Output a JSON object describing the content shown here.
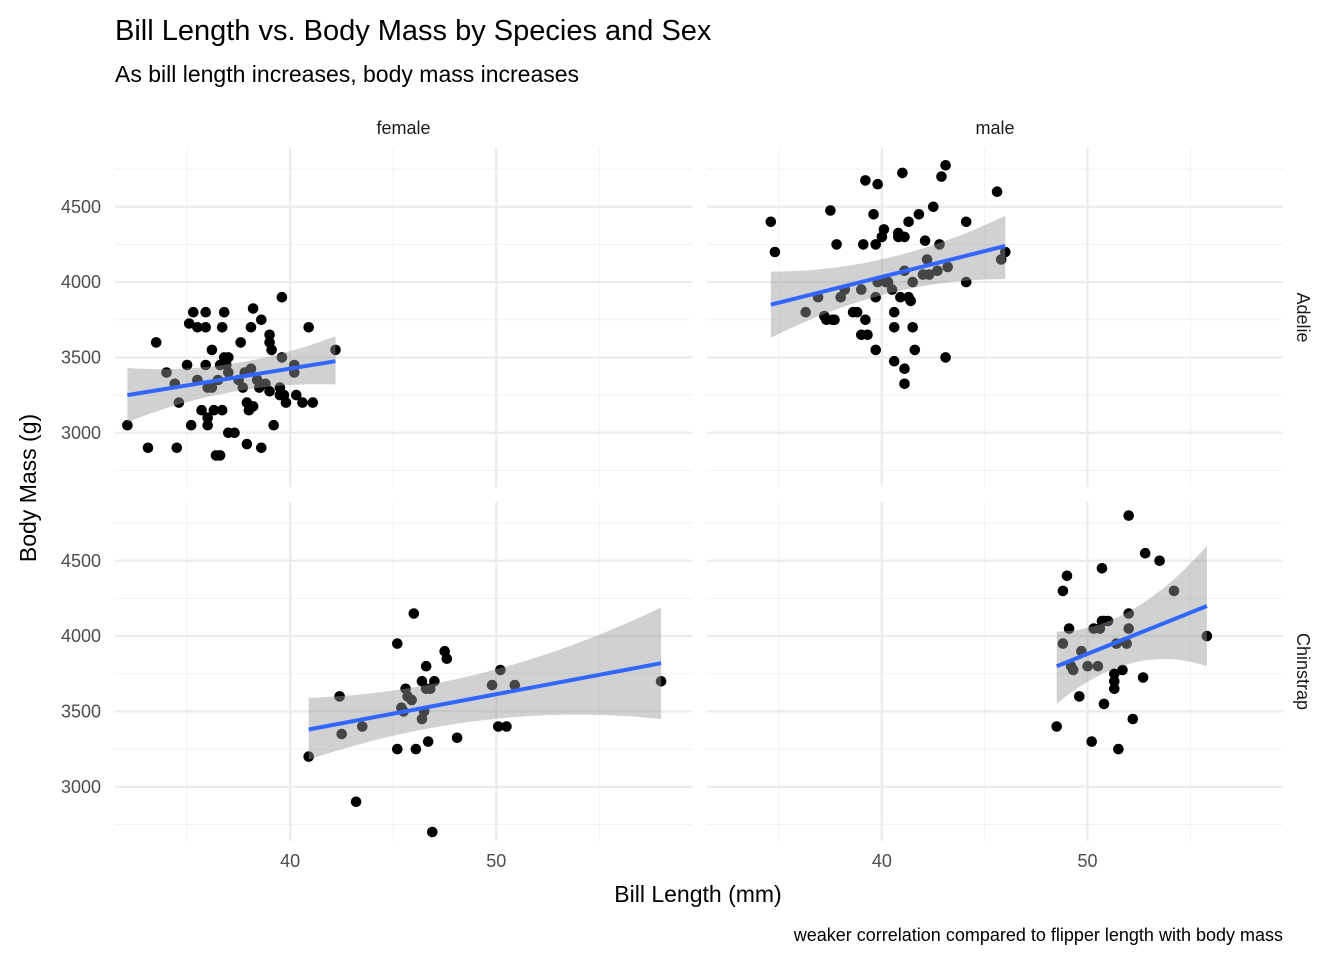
{
  "chart_data": {
    "type": "scatter",
    "title": "Bill Length vs. Body Mass by Species and Sex",
    "subtitle": "As bill length increases, body mass increases",
    "xlabel": "Bill Length (mm)",
    "ylabel": "Body Mass (g)",
    "caption": "weaker correlation compared to flipper length with body mass",
    "facet_cols": [
      "female",
      "male"
    ],
    "facet_rows": [
      "Adelie",
      "Chinstrap"
    ],
    "xlim": [
      31.5,
      59.5
    ],
    "xticks": [
      40,
      50
    ],
    "rows": [
      {
        "label": "Adelie",
        "ylim": [
          2640,
          4890
        ],
        "yticks": [
          3000,
          3500,
          4000,
          4500
        ]
      },
      {
        "label": "Chinstrap",
        "ylim": [
          2640,
          4890
        ],
        "yticks": [
          3000,
          3500,
          4000,
          4500
        ]
      }
    ],
    "grid": true,
    "panels": [
      {
        "col": "female",
        "row": "Adelie",
        "fit": {
          "x": [
            32.1,
            42.2
          ],
          "y": [
            3250,
            3475
          ],
          "se_low": [
            3070,
            3320
          ],
          "se_high": [
            3430,
            3640
          ]
        },
        "points": [
          [
            32.1,
            3050
          ],
          [
            33.1,
            2900
          ],
          [
            33.5,
            3600
          ],
          [
            34.0,
            3400
          ],
          [
            34.4,
            3325
          ],
          [
            34.5,
            2900
          ],
          [
            34.6,
            3200
          ],
          [
            35.0,
            3450
          ],
          [
            35.1,
            3725
          ],
          [
            35.2,
            3050
          ],
          [
            35.3,
            3800
          ],
          [
            35.5,
            3700
          ],
          [
            35.5,
            3350
          ],
          [
            35.7,
            3150
          ],
          [
            35.9,
            3800
          ],
          [
            35.9,
            3700
          ],
          [
            35.9,
            3450
          ],
          [
            36.0,
            3300
          ],
          [
            36.0,
            3100
          ],
          [
            36.0,
            3050
          ],
          [
            36.2,
            3300
          ],
          [
            36.2,
            3550
          ],
          [
            36.3,
            3150
          ],
          [
            36.4,
            2850
          ],
          [
            36.5,
            3350
          ],
          [
            36.6,
            2850
          ],
          [
            36.6,
            3450
          ],
          [
            36.7,
            3700
          ],
          [
            36.7,
            3150
          ],
          [
            36.8,
            3800
          ],
          [
            36.8,
            3500
          ],
          [
            36.9,
            3450
          ],
          [
            37.0,
            3500
          ],
          [
            37.0,
            3400
          ],
          [
            37.0,
            3000
          ],
          [
            37.3,
            3000
          ],
          [
            37.5,
            3350
          ],
          [
            37.6,
            3600
          ],
          [
            37.7,
            3300
          ],
          [
            37.8,
            3400
          ],
          [
            37.9,
            3200
          ],
          [
            37.9,
            2925
          ],
          [
            38.0,
            3150
          ],
          [
            38.1,
            3700
          ],
          [
            38.1,
            3425
          ],
          [
            38.2,
            3825
          ],
          [
            38.2,
            3175
          ],
          [
            38.4,
            3350
          ],
          [
            38.5,
            3300
          ],
          [
            38.6,
            3750
          ],
          [
            38.6,
            2900
          ],
          [
            38.8,
            3325
          ],
          [
            39.0,
            3650
          ],
          [
            39.0,
            3600
          ],
          [
            39.0,
            3275
          ],
          [
            39.1,
            3550
          ],
          [
            39.2,
            3050
          ],
          [
            39.5,
            3300
          ],
          [
            39.5,
            3250
          ],
          [
            39.6,
            3500
          ],
          [
            39.6,
            3900
          ],
          [
            39.7,
            3250
          ],
          [
            39.8,
            3200
          ],
          [
            40.2,
            3400
          ],
          [
            40.2,
            3450
          ],
          [
            40.3,
            3250
          ],
          [
            40.6,
            3200
          ],
          [
            40.9,
            3700
          ],
          [
            41.1,
            3200
          ],
          [
            42.2,
            3550
          ]
        ]
      },
      {
        "col": "male",
        "row": "Adelie",
        "fit": {
          "x": [
            34.6,
            46.0
          ],
          "y": [
            3850,
            4240
          ],
          "se_low": [
            3630,
            4020
          ],
          "se_high": [
            4070,
            4440
          ]
        },
        "points": [
          [
            34.6,
            4400
          ],
          [
            34.8,
            4200
          ],
          [
            36.3,
            3800
          ],
          [
            36.9,
            3900
          ],
          [
            37.2,
            3775
          ],
          [
            37.3,
            3750
          ],
          [
            37.5,
            4475
          ],
          [
            37.6,
            3750
          ],
          [
            37.7,
            3750
          ],
          [
            37.8,
            4250
          ],
          [
            38.0,
            3900
          ],
          [
            38.2,
            3950
          ],
          [
            38.6,
            3800
          ],
          [
            38.8,
            3800
          ],
          [
            39.0,
            3950
          ],
          [
            39.0,
            3650
          ],
          [
            39.1,
            4250
          ],
          [
            39.2,
            4675
          ],
          [
            39.2,
            3750
          ],
          [
            39.3,
            3650
          ],
          [
            39.6,
            4450
          ],
          [
            39.7,
            4250
          ],
          [
            39.7,
            3900
          ],
          [
            39.7,
            3550
          ],
          [
            39.8,
            4650
          ],
          [
            39.8,
            4000
          ],
          [
            40.0,
            4300
          ],
          [
            40.1,
            4350
          ],
          [
            40.2,
            4000
          ],
          [
            40.3,
            4000
          ],
          [
            40.5,
            3950
          ],
          [
            40.6,
            3700
          ],
          [
            40.6,
            3475
          ],
          [
            40.6,
            3800
          ],
          [
            40.8,
            4300
          ],
          [
            40.8,
            4325
          ],
          [
            40.9,
            3900
          ],
          [
            41.0,
            4725
          ],
          [
            41.1,
            4300
          ],
          [
            41.1,
            4075
          ],
          [
            41.1,
            3325
          ],
          [
            41.1,
            3425
          ],
          [
            41.3,
            4400
          ],
          [
            41.3,
            3900
          ],
          [
            41.4,
            3875
          ],
          [
            41.5,
            4000
          ],
          [
            41.5,
            3700
          ],
          [
            41.6,
            3550
          ],
          [
            41.8,
            4450
          ],
          [
            42.0,
            4050
          ],
          [
            42.1,
            4275
          ],
          [
            42.2,
            4150
          ],
          [
            42.3,
            4050
          ],
          [
            42.5,
            4500
          ],
          [
            42.7,
            4075
          ],
          [
            42.8,
            4250
          ],
          [
            42.9,
            4700
          ],
          [
            43.1,
            4775
          ],
          [
            43.1,
            3500
          ],
          [
            43.2,
            4100
          ],
          [
            44.1,
            4400
          ],
          [
            44.1,
            4000
          ],
          [
            45.6,
            4600
          ],
          [
            45.8,
            4150
          ],
          [
            46.0,
            4200
          ]
        ]
      },
      {
        "col": "female",
        "row": "Chinstrap",
        "fit": {
          "x": [
            40.9,
            58.0
          ],
          "y": [
            3380,
            3820
          ],
          "se_low": [
            3180,
            3450
          ],
          "se_high": [
            3590,
            4190
          ]
        },
        "points": [
          [
            40.9,
            3200
          ],
          [
            42.4,
            3600
          ],
          [
            42.5,
            3350
          ],
          [
            43.2,
            2900
          ],
          [
            43.5,
            3400
          ],
          [
            45.2,
            3950
          ],
          [
            45.2,
            3250
          ],
          [
            45.4,
            3525
          ],
          [
            45.5,
            3500
          ],
          [
            45.6,
            3650
          ],
          [
            45.7,
            3600
          ],
          [
            45.9,
            3575
          ],
          [
            46.0,
            4150
          ],
          [
            46.1,
            3250
          ],
          [
            46.4,
            3700
          ],
          [
            46.4,
            3450
          ],
          [
            46.5,
            3500
          ],
          [
            46.6,
            3650
          ],
          [
            46.6,
            3800
          ],
          [
            46.7,
            3300
          ],
          [
            46.8,
            3650
          ],
          [
            46.9,
            2700
          ],
          [
            47.0,
            3700
          ],
          [
            47.5,
            3900
          ],
          [
            47.6,
            3850
          ],
          [
            48.1,
            3325
          ],
          [
            49.8,
            3675
          ],
          [
            50.1,
            3400
          ],
          [
            50.2,
            3775
          ],
          [
            50.5,
            3400
          ],
          [
            50.9,
            3675
          ],
          [
            58.0,
            3700
          ]
        ]
      },
      {
        "col": "male",
        "row": "Chinstrap",
        "fit": {
          "x": [
            48.5,
            55.8
          ],
          "y": [
            3800,
            4200
          ],
          "se_low": [
            3550,
            3800
          ],
          "se_high": [
            4030,
            4600
          ]
        },
        "points": [
          [
            48.5,
            3400
          ],
          [
            48.8,
            3950
          ],
          [
            48.8,
            4300
          ],
          [
            49.0,
            4400
          ],
          [
            49.1,
            4050
          ],
          [
            49.2,
            3800
          ],
          [
            49.3,
            3775
          ],
          [
            49.6,
            3600
          ],
          [
            49.7,
            3900
          ],
          [
            50.0,
            3800
          ],
          [
            50.2,
            3300
          ],
          [
            50.3,
            4050
          ],
          [
            50.5,
            3800
          ],
          [
            50.6,
            4050
          ],
          [
            50.7,
            4100
          ],
          [
            50.7,
            4450
          ],
          [
            50.8,
            3550
          ],
          [
            50.8,
            4100
          ],
          [
            51.0,
            4100
          ],
          [
            51.3,
            3650
          ],
          [
            51.3,
            3700
          ],
          [
            51.3,
            3750
          ],
          [
            51.4,
            3950
          ],
          [
            51.5,
            3250
          ],
          [
            51.7,
            3775
          ],
          [
            51.9,
            3950
          ],
          [
            52.0,
            4050
          ],
          [
            52.0,
            4800
          ],
          [
            52.0,
            4150
          ],
          [
            52.2,
            3450
          ],
          [
            52.7,
            3725
          ],
          [
            52.8,
            4550
          ],
          [
            53.5,
            4500
          ],
          [
            54.2,
            4300
          ],
          [
            55.8,
            4000
          ]
        ]
      }
    ]
  }
}
